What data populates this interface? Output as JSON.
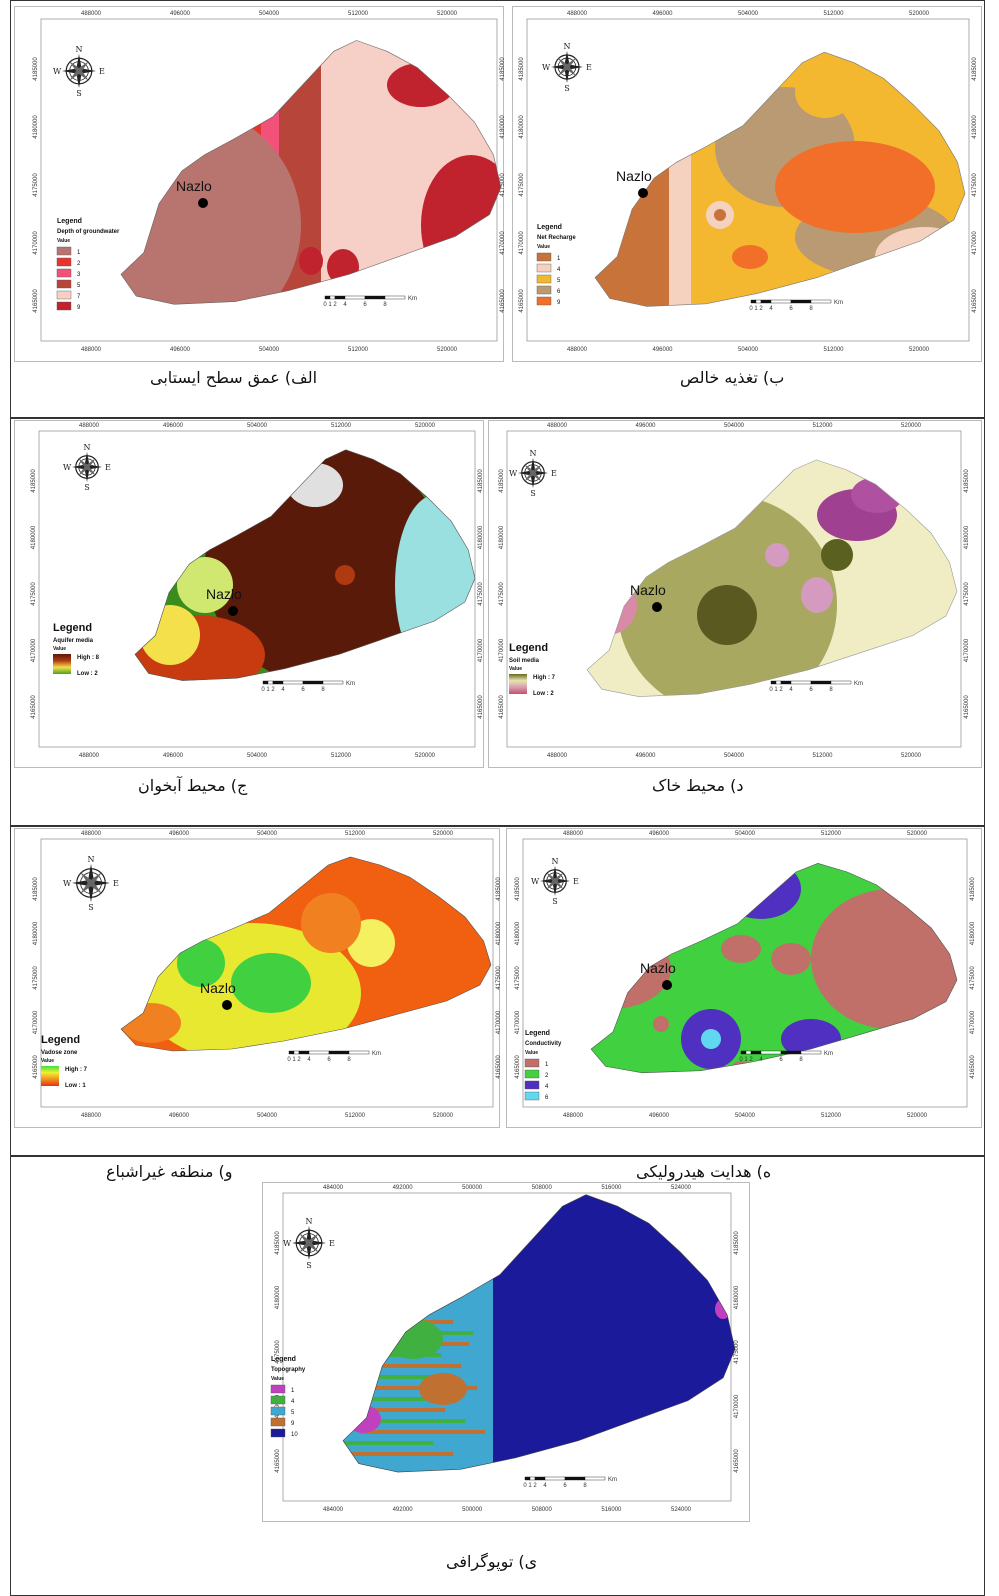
{
  "compass": {
    "n": "N",
    "s": "S",
    "e": "E",
    "w": "W"
  },
  "town": "Nazlo",
  "scale": {
    "ticks": [
      "0",
      "1",
      "2",
      "4",
      "6",
      "8"
    ],
    "unit": "Km"
  },
  "legend_heading": "Legend",
  "value_label": "Value",
  "panels": [
    {
      "id": "depth",
      "title": "Depth of groundwater",
      "caption": "الف) عمق سطح ایستابی",
      "x_ticks": [
        "488000",
        "496000",
        "504000",
        "512000",
        "520000"
      ],
      "y_ticks": [
        "4185000",
        "4180000",
        "4175000",
        "4170000",
        "4165000"
      ],
      "classes": [
        {
          "label": "1",
          "color": "#b8756f"
        },
        {
          "label": "2",
          "color": "#e8342e"
        },
        {
          "label": "3",
          "color": "#f2527a"
        },
        {
          "label": "5",
          "color": "#b8453a"
        },
        {
          "label": "7",
          "color": "#f6cfc6"
        },
        {
          "label": "9",
          "color": "#c0222e"
        }
      ]
    },
    {
      "id": "recharge",
      "title": "Net Recharge",
      "caption": "ب) تغذیه خالص",
      "x_ticks": [
        "488000",
        "496000",
        "504000",
        "512000",
        "520000"
      ],
      "y_ticks": [
        "4185000",
        "4180000",
        "4175000",
        "4170000",
        "4165000"
      ],
      "classes": [
        {
          "label": "1",
          "color": "#c8733a"
        },
        {
          "label": "4",
          "color": "#f4d2bf"
        },
        {
          "label": "5",
          "color": "#f4b830"
        },
        {
          "label": "6",
          "color": "#b99a72"
        },
        {
          "label": "9",
          "color": "#f26f2a"
        }
      ]
    },
    {
      "id": "aquifer",
      "title": "Aquifer media",
      "caption": "ج) محیط آبخوان",
      "x_ticks": [
        "488000",
        "496000",
        "504000",
        "512000",
        "520000"
      ],
      "y_ticks": [
        "4185000",
        "4180000",
        "4175000",
        "4170000",
        "4165000"
      ],
      "high": "High : 8",
      "low": "Low : 2",
      "ramp": [
        "#5a1a0a",
        "#b03a10",
        "#f4e04a",
        "#4aa020"
      ]
    },
    {
      "id": "soil",
      "title": "Soil media",
      "caption": "د) محیط خاک",
      "x_ticks": [
        "488000",
        "496000",
        "504000",
        "512000",
        "520000"
      ],
      "y_ticks": [
        "4185000",
        "4180000",
        "4175000",
        "4170000",
        "4165000"
      ],
      "high": "High : 7",
      "low": "Low : 2",
      "ramp": [
        "#6a6a20",
        "#e8e4b0",
        "#d89cb0",
        "#c05070"
      ]
    },
    {
      "id": "vadose",
      "title": "Vadose zone",
      "caption": "و) منطقه غیراشباع",
      "x_ticks": [
        "488000",
        "496000",
        "504000",
        "512000",
        "520000"
      ],
      "y_ticks": [
        "4185000",
        "4180000",
        "4175000",
        "4170000",
        "4165000"
      ],
      "high": "High : 7",
      "low": "Low : 1",
      "ramp": [
        "#40e040",
        "#f0f030",
        "#f09020",
        "#e83010"
      ]
    },
    {
      "id": "conductivity",
      "title": "Conductivity",
      "caption": "ه) هدایت هیدرولیکی",
      "x_ticks": [
        "488000",
        "496000",
        "504000",
        "512000",
        "520000"
      ],
      "y_ticks": [
        "4185000",
        "4180000",
        "4175000",
        "4170000",
        "4165000"
      ],
      "classes": [
        {
          "label": "1",
          "color": "#c07068"
        },
        {
          "label": "2",
          "color": "#40d040"
        },
        {
          "label": "4",
          "color": "#5030c0"
        },
        {
          "label": "6",
          "color": "#60d8f0"
        }
      ]
    },
    {
      "id": "topography",
      "title": "Topography",
      "caption": "ی) توپوگرافی",
      "x_ticks": [
        "484000",
        "492000",
        "500000",
        "508000",
        "516000",
        "524000"
      ],
      "y_ticks": [
        "4185000",
        "4180000",
        "4175000",
        "4170000",
        "4165000"
      ],
      "classes": [
        {
          "label": "1",
          "color": "#c040c0"
        },
        {
          "label": "4",
          "color": "#40b040"
        },
        {
          "label": "5",
          "color": "#40a8d0"
        },
        {
          "label": "9",
          "color": "#c07030"
        },
        {
          "label": "10",
          "color": "#1a1a9a"
        }
      ]
    }
  ]
}
